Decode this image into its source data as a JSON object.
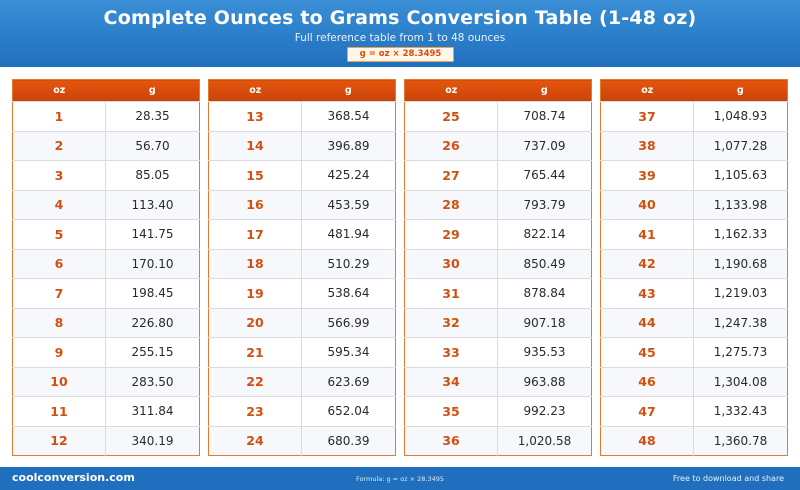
{
  "header": {
    "title": "Complete Ounces to Grams Conversion Table (1-48 oz)",
    "subtitle": "Full reference table from 1 to 48 ounces",
    "formula_badge": "g = oz × 28.3495"
  },
  "columns": {
    "oz_label": "oz",
    "g_label": "g"
  },
  "tables": [
    {
      "rows": [
        {
          "oz": "1",
          "g": "28.35"
        },
        {
          "oz": "2",
          "g": "56.70"
        },
        {
          "oz": "3",
          "g": "85.05"
        },
        {
          "oz": "4",
          "g": "113.40"
        },
        {
          "oz": "5",
          "g": "141.75"
        },
        {
          "oz": "6",
          "g": "170.10"
        },
        {
          "oz": "7",
          "g": "198.45"
        },
        {
          "oz": "8",
          "g": "226.80"
        },
        {
          "oz": "9",
          "g": "255.15"
        },
        {
          "oz": "10",
          "g": "283.50"
        },
        {
          "oz": "11",
          "g": "311.84"
        },
        {
          "oz": "12",
          "g": "340.19"
        }
      ]
    },
    {
      "rows": [
        {
          "oz": "13",
          "g": "368.54"
        },
        {
          "oz": "14",
          "g": "396.89"
        },
        {
          "oz": "15",
          "g": "425.24"
        },
        {
          "oz": "16",
          "g": "453.59"
        },
        {
          "oz": "17",
          "g": "481.94"
        },
        {
          "oz": "18",
          "g": "510.29"
        },
        {
          "oz": "19",
          "g": "538.64"
        },
        {
          "oz": "20",
          "g": "566.99"
        },
        {
          "oz": "21",
          "g": "595.34"
        },
        {
          "oz": "22",
          "g": "623.69"
        },
        {
          "oz": "23",
          "g": "652.04"
        },
        {
          "oz": "24",
          "g": "680.39"
        }
      ]
    },
    {
      "rows": [
        {
          "oz": "25",
          "g": "708.74"
        },
        {
          "oz": "26",
          "g": "737.09"
        },
        {
          "oz": "27",
          "g": "765.44"
        },
        {
          "oz": "28",
          "g": "793.79"
        },
        {
          "oz": "29",
          "g": "822.14"
        },
        {
          "oz": "30",
          "g": "850.49"
        },
        {
          "oz": "31",
          "g": "878.84"
        },
        {
          "oz": "32",
          "g": "907.18"
        },
        {
          "oz": "33",
          "g": "935.53"
        },
        {
          "oz": "34",
          "g": "963.88"
        },
        {
          "oz": "35",
          "g": "992.23"
        },
        {
          "oz": "36",
          "g": "1,020.58"
        }
      ]
    },
    {
      "rows": [
        {
          "oz": "37",
          "g": "1,048.93"
        },
        {
          "oz": "38",
          "g": "1,077.28"
        },
        {
          "oz": "39",
          "g": "1,105.63"
        },
        {
          "oz": "40",
          "g": "1,133.98"
        },
        {
          "oz": "41",
          "g": "1,162.33"
        },
        {
          "oz": "42",
          "g": "1,190.68"
        },
        {
          "oz": "43",
          "g": "1,219.03"
        },
        {
          "oz": "44",
          "g": "1,247.38"
        },
        {
          "oz": "45",
          "g": "1,275.73"
        },
        {
          "oz": "46",
          "g": "1,304.08"
        },
        {
          "oz": "47",
          "g": "1,332.43"
        },
        {
          "oz": "48",
          "g": "1,360.78"
        }
      ]
    }
  ],
  "footer": {
    "site": "coolconversion.com",
    "formula": "Formula: g = oz × 28.3495",
    "free_text": "Free to download and share"
  },
  "colors": {
    "header_blue": "#1f6fbe",
    "accent_orange": "#d2500f"
  }
}
